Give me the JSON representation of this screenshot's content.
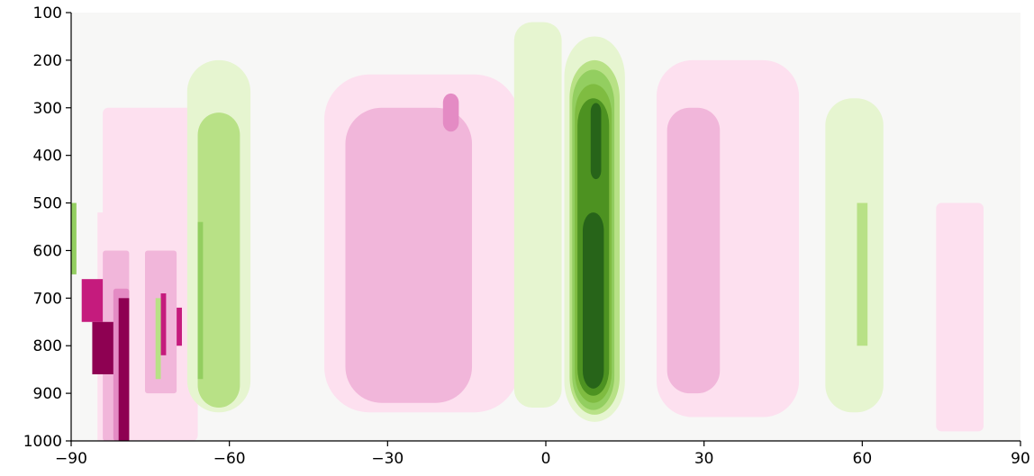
{
  "chart_data": {
    "type": "heatmap",
    "title": "",
    "xlabel": "",
    "ylabel": "",
    "xlim": [
      -90,
      90
    ],
    "ylim": [
      1000,
      100
    ],
    "y_inverted": true,
    "x_ticks": [
      -90,
      -60,
      -30,
      0,
      30,
      60,
      90
    ],
    "x_tick_labels": [
      "−90",
      "−60",
      "−30",
      "0",
      "30",
      "60",
      "90"
    ],
    "y_ticks": [
      100,
      200,
      300,
      400,
      500,
      600,
      700,
      800,
      900,
      1000
    ],
    "y_tick_labels": [
      "100",
      "200",
      "300",
      "400",
      "500",
      "600",
      "700",
      "800",
      "900",
      "1000"
    ],
    "colormap": "PiYG",
    "grid": false,
    "features": [
      {
        "sign": "negative",
        "lat": [
          -90,
          -68
        ],
        "p": [
          600,
          1000
        ],
        "peak_level": 4
      },
      {
        "sign": "positive",
        "lat": [
          -68,
          -56
        ],
        "p": [
          200,
          940
        ],
        "peak_level": 2
      },
      {
        "sign": "negative",
        "lat": [
          -42,
          -5
        ],
        "p": [
          230,
          940
        ],
        "peak_level": 2
      },
      {
        "sign": "positive",
        "lat": [
          -6,
          3
        ],
        "p": [
          120,
          930
        ],
        "peak_level": 1
      },
      {
        "sign": "positive",
        "lat": [
          4,
          15
        ],
        "p": [
          150,
          960
        ],
        "peak_level": 6
      },
      {
        "sign": "negative",
        "lat": [
          21,
          48
        ],
        "p": [
          200,
          950
        ],
        "peak_level": 2
      },
      {
        "sign": "positive",
        "lat": [
          53,
          64
        ],
        "p": [
          280,
          940
        ],
        "peak_level": 1
      },
      {
        "sign": "negative",
        "lat": [
          74,
          83
        ],
        "p": [
          500,
          980
        ],
        "peak_level": 1
      }
    ]
  },
  "colors": {
    "neutral": "#f7f7f6",
    "pos_1": "#e6f5d0",
    "pos_2": "#b8e186",
    "pos_3": "#93ce60",
    "pos_4": "#7fbc41",
    "pos_5": "#4d9221",
    "pos_6": "#276419",
    "neg_1": "#fde0ef",
    "neg_2": "#f1b6da",
    "neg_3": "#e48bc4",
    "neg_4": "#c51b7d",
    "neg_5": "#8e0152"
  }
}
